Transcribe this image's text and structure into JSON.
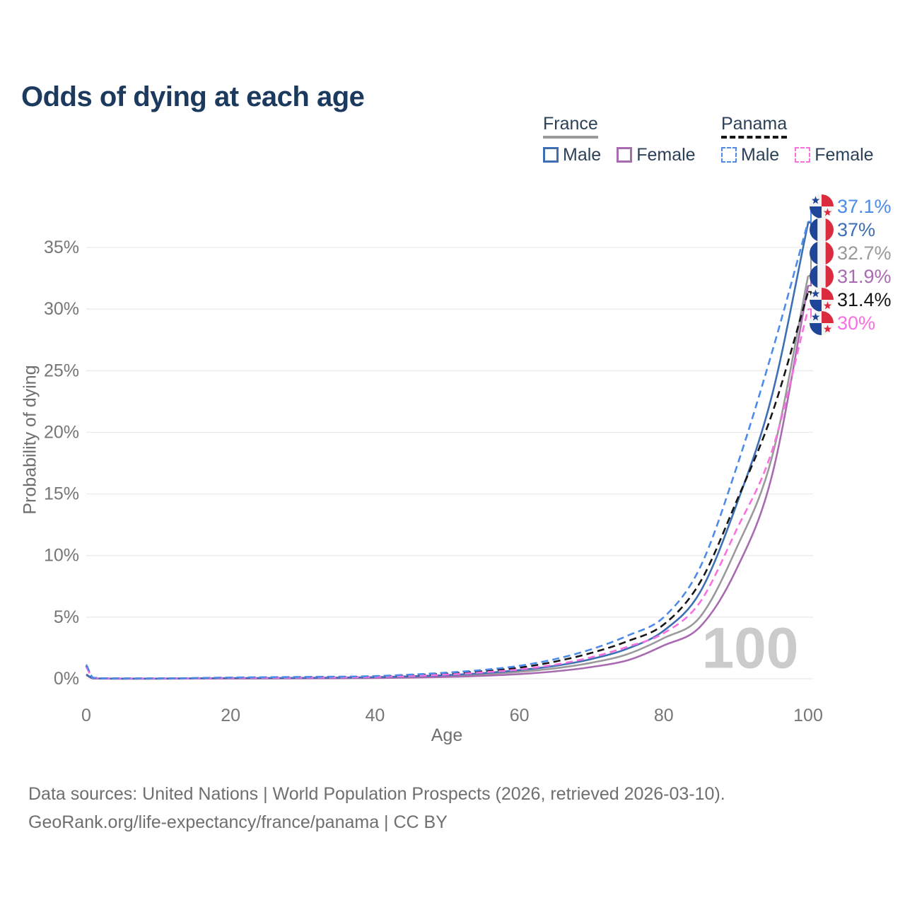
{
  "title": "Odds of dying at each age",
  "watermark": "100",
  "colors": {
    "title": "#1c3a5e",
    "legend_text": "#2c4158",
    "axis_text": "#767676",
    "grid": "#e9e9e9",
    "watermark": "#cbcbcb",
    "footer_text": "#6f6f6f",
    "flag_blue": "#1e4598",
    "flag_red": "#da2c3e",
    "flag_white": "#f3f3f3"
  },
  "legend": {
    "groups": [
      {
        "country": "France",
        "line_color": "#9a9a9a",
        "line_style": "solid",
        "items": [
          {
            "label": "Male",
            "color": "#3d6fb5",
            "dashed": false
          },
          {
            "label": "Female",
            "color": "#a86bb0",
            "dashed": false
          }
        ]
      },
      {
        "country": "Panama",
        "line_color": "#161616",
        "line_style": "dashed",
        "items": [
          {
            "label": "Male",
            "color": "#4d8be8",
            "dashed": true
          },
          {
            "label": "Female",
            "color": "#f970e0",
            "dashed": true
          }
        ]
      }
    ]
  },
  "footer": {
    "line1": "Data sources: United Nations | World Population Prospects (2026, retrieved 2026-03-10).",
    "line2": "GeoRank.org/life-expectancy/france/panama | CC BY"
  },
  "chart_data": {
    "type": "line",
    "title": "Odds of dying at each age",
    "xlabel": "Age",
    "ylabel": "Probability of dying",
    "xlim": [
      0,
      100
    ],
    "ylim": [
      0,
      37.5
    ],
    "x_ticks": [
      0,
      20,
      40,
      60,
      80,
      100
    ],
    "y_ticks": [
      0,
      5,
      10,
      15,
      20,
      25,
      30,
      35
    ],
    "y_tick_suffix": "%",
    "grid": "horizontal",
    "legend_position": "top-right",
    "x": [
      0,
      1,
      5,
      10,
      20,
      30,
      40,
      50,
      55,
      60,
      65,
      70,
      75,
      80,
      85,
      90,
      95,
      100
    ],
    "series": [
      {
        "id": "panama-male",
        "name": "Panama Male",
        "country": "panama",
        "color": "#4d8be8",
        "dashed": true,
        "end_label": "37.1%",
        "values": [
          1.15,
          0.08,
          0.03,
          0.03,
          0.1,
          0.15,
          0.22,
          0.5,
          0.72,
          1.05,
          1.6,
          2.4,
          3.5,
          5.0,
          9.0,
          17.0,
          26.5,
          37.1
        ]
      },
      {
        "id": "france-male",
        "name": "France Male",
        "country": "france",
        "color": "#3d6fb5",
        "dashed": false,
        "end_label": "37%",
        "values": [
          0.35,
          0.03,
          0.01,
          0.012,
          0.05,
          0.07,
          0.13,
          0.3,
          0.46,
          0.7,
          1.05,
          1.6,
          2.45,
          3.9,
          7.0,
          14.0,
          23.0,
          37.0
        ]
      },
      {
        "id": "france-both",
        "name": "France Both sexes",
        "country": "france",
        "color": "#9a9a9a",
        "dashed": false,
        "end_label": "32.7%",
        "values": [
          0.32,
          0.025,
          0.009,
          0.01,
          0.035,
          0.05,
          0.1,
          0.24,
          0.37,
          0.56,
          0.85,
          1.3,
          2.0,
          3.3,
          5.0,
          10.5,
          18.0,
          32.7
        ]
      },
      {
        "id": "france-female",
        "name": "France Female",
        "country": "france",
        "color": "#a86bb0",
        "dashed": false,
        "end_label": "31.9%",
        "values": [
          0.3,
          0.022,
          0.008,
          0.009,
          0.02,
          0.03,
          0.06,
          0.15,
          0.24,
          0.38,
          0.6,
          0.95,
          1.5,
          2.7,
          4.2,
          8.8,
          16.5,
          31.9
        ]
      },
      {
        "id": "panama-both",
        "name": "Panama Both sexes",
        "country": "panama",
        "color": "#161616",
        "dashed": true,
        "end_label": "31.4%",
        "values": [
          1.05,
          0.07,
          0.027,
          0.027,
          0.08,
          0.12,
          0.18,
          0.42,
          0.62,
          0.9,
          1.4,
          2.1,
          3.05,
          4.4,
          7.8,
          14.3,
          21.5,
          31.4
        ]
      },
      {
        "id": "panama-female",
        "name": "Panama Female",
        "country": "panama",
        "color": "#f970e0",
        "dashed": true,
        "end_label": "30%",
        "values": [
          0.95,
          0.06,
          0.024,
          0.024,
          0.06,
          0.09,
          0.15,
          0.34,
          0.52,
          0.76,
          1.15,
          1.75,
          2.6,
          3.7,
          6.2,
          12.0,
          18.5,
          30.0
        ]
      }
    ]
  }
}
